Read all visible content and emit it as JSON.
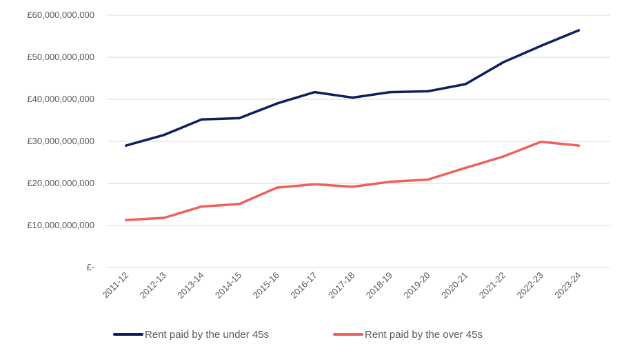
{
  "chart_data": {
    "type": "line",
    "title": "",
    "xlabel": "",
    "ylabel": "",
    "categories": [
      "2011-12",
      "2012-13",
      "2013-14",
      "2014-15",
      "2015-16",
      "2016-17",
      "2017-18",
      "2018-19",
      "2019-20",
      "2020-21",
      "2021-22",
      "2022-23",
      "2023-24"
    ],
    "ylim": [
      0,
      60000000000
    ],
    "y_ticks": [
      0,
      10000000000,
      20000000000,
      30000000000,
      40000000000,
      50000000000,
      60000000000
    ],
    "y_tick_labels": [
      "£-",
      "£10,000,000,000",
      "£20,000,000,000",
      "£30,000,000,000",
      "£40,000,000,000",
      "£50,000,000,000",
      "£60,000,000,000"
    ],
    "grid": true,
    "legend_position": "bottom",
    "series": [
      {
        "name": "Rent paid by the under 45s",
        "color": "#0d1f5c",
        "values": [
          29000000000,
          31500000000,
          35200000000,
          35500000000,
          39000000000,
          41700000000,
          40400000000,
          41700000000,
          41900000000,
          43600000000,
          48800000000,
          52700000000,
          56400000000
        ]
      },
      {
        "name": "Rent paid by the over 45s",
        "color": "#f0605d",
        "values": [
          11300000000,
          11800000000,
          14500000000,
          15100000000,
          19000000000,
          19800000000,
          19200000000,
          20400000000,
          20900000000,
          23700000000,
          26400000000,
          29900000000,
          29000000000
        ]
      }
    ]
  }
}
